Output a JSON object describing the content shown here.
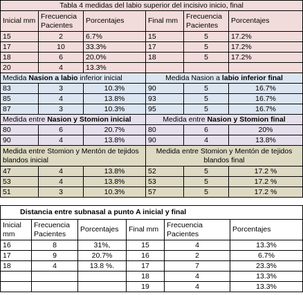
{
  "table1": {
    "title": "Tabla 4 medidas del labio superior del  incisivo inicio, final",
    "header": [
      "Inicial mm",
      "Frecuencia Pacientes",
      "Porcentajes",
      "Final mm",
      "Frecuencia Pacientes",
      "Porcentajes"
    ],
    "sections": [
      {
        "color": "#f2dcdb",
        "rows": [
          [
            15,
            2,
            "6.7%",
            15,
            5,
            "17.2%"
          ],
          [
            17,
            10,
            "33.3%",
            17,
            5,
            "17.2%"
          ],
          [
            18,
            6,
            "20.0%",
            18,
            5,
            "17.2%"
          ],
          [
            20,
            4,
            "13.3%",
            null,
            null,
            null
          ]
        ]
      },
      {
        "color": "#dbe5f1",
        "heading": {
          "left": [
            {
              "text": "Medida "
            },
            {
              "text": "Nasion a labio",
              "bold": true
            },
            {
              "text": " inferior inicial"
            }
          ],
          "right": [
            {
              "text": "Medida Nasion a "
            },
            {
              "text": "labio inferior final",
              "bold": true
            }
          ]
        },
        "rows": [
          [
            83,
            3,
            "10.3%",
            90,
            5,
            "16.7%"
          ],
          [
            85,
            4,
            "13.8%",
            93,
            5,
            "16.7%"
          ],
          [
            87,
            3,
            "10.3%",
            95,
            5,
            "16.7%"
          ]
        ]
      },
      {
        "color": "#e5dfec",
        "heading": {
          "left": [
            {
              "text": "Medida entre "
            },
            {
              "text": "Nasion y Stomion inicial",
              "bold": true
            }
          ],
          "right": [
            {
              "text": "Medida entre "
            },
            {
              "text": "Nasion y Stomion  final",
              "bold": true
            }
          ]
        },
        "rows": [
          [
            80,
            6,
            "20.7%",
            80,
            6,
            "20%"
          ],
          [
            90,
            4,
            "13.8%",
            90,
            4,
            "13.8%"
          ]
        ]
      },
      {
        "color": "#ddd9c3",
        "heading": {
          "left": [
            {
              "text": "Medida entre Stomion y Mentón de tejidos blandos inicial"
            }
          ],
          "right": [
            {
              "text": "Medida entre Stomion y Mentón de tejidos blandos final"
            }
          ]
        },
        "rows": [
          [
            47,
            4,
            "13.8%",
            52,
            5,
            "17.2 %"
          ],
          [
            53,
            4,
            "13.8%",
            53,
            5,
            "17.2 %"
          ],
          [
            51,
            3,
            "10.3%",
            57,
            5,
            "17.2 %"
          ]
        ]
      }
    ]
  },
  "table2": {
    "title": "Distancia entre subnasal a punto  A   inicial y final",
    "header": [
      "Inicial mm",
      "Frecuencia Pacientes",
      "Porcentajes",
      "Final mm",
      "Frecuencia Pacientes",
      "Porcentajes"
    ],
    "rows": [
      [
        16,
        8,
        "31%,",
        15,
        4,
        "13.3%"
      ],
      [
        17,
        9,
        "20.7%",
        16,
        2,
        "6.7%"
      ],
      [
        18,
        4,
        "13.8 %.",
        17,
        7,
        "23.3%"
      ],
      [
        null,
        null,
        null,
        18,
        4,
        "13.3%"
      ],
      [
        null,
        null,
        null,
        19,
        4,
        "13.3%"
      ]
    ]
  }
}
